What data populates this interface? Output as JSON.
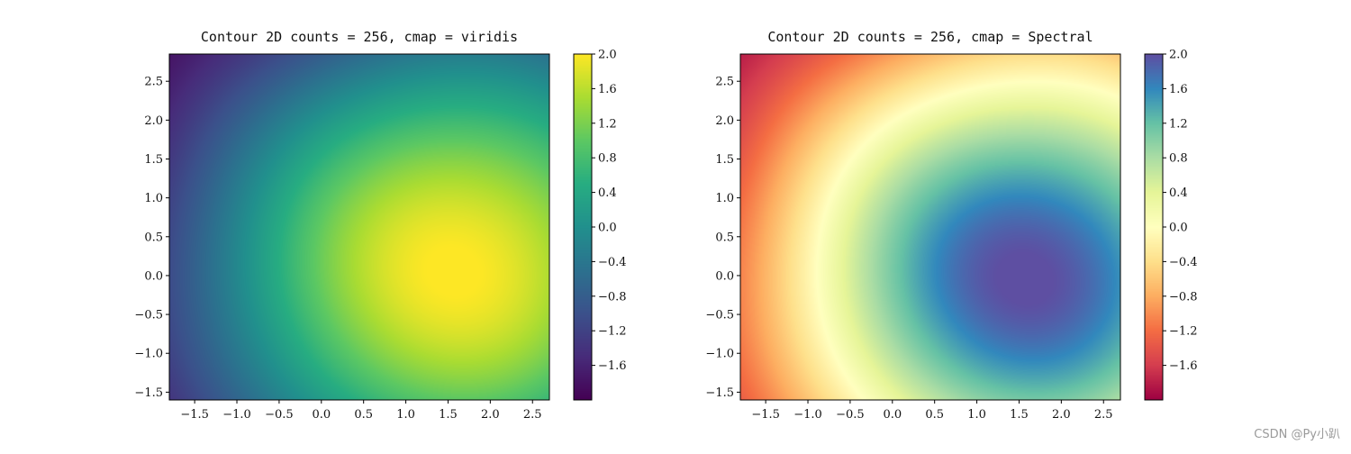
{
  "chart_data": [
    {
      "type": "heatmap",
      "title": "Contour 2D counts = 256, cmap = viridis",
      "cmap": "viridis",
      "levels": 256,
      "xlim": [
        -1.8,
        2.7
      ],
      "ylim": [
        -1.6,
        2.85
      ],
      "xticks": [
        -1.5,
        -1.0,
        -0.5,
        0.0,
        0.5,
        1.0,
        1.5,
        2.0,
        2.5
      ],
      "xtick_labels": [
        "−1.5",
        "−1.0",
        "−0.5",
        "0.0",
        "0.5",
        "1.0",
        "1.5",
        "2.0",
        "2.5"
      ],
      "yticks": [
        -1.5,
        -1.0,
        -0.5,
        0.0,
        0.5,
        1.0,
        1.5,
        2.0,
        2.5
      ],
      "ytick_labels": [
        "−1.5",
        "−1.0",
        "−0.5",
        "0.0",
        "0.5",
        "1.0",
        "1.5",
        "2.0",
        "2.5"
      ],
      "colorbar": {
        "range": [
          -2.0,
          2.0
        ],
        "ticks": [
          2.0,
          1.6,
          1.2,
          0.8,
          0.4,
          0.0,
          -0.4,
          -0.8,
          -1.2,
          -1.6
        ],
        "tick_labels": [
          "2.0",
          "1.6",
          "1.2",
          "0.8",
          "0.4",
          "0.0",
          "−0.4",
          "−0.8",
          "−1.2",
          "−1.6"
        ]
      },
      "field_peak": {
        "x": 1.6,
        "y": 0.1,
        "value": 2.0
      },
      "field_min": {
        "x": -1.8,
        "y": 2.85,
        "value": -2.0
      }
    },
    {
      "type": "heatmap",
      "title": "Contour 2D counts = 256, cmap = Spectral",
      "cmap": "Spectral",
      "levels": 256,
      "xlim": [
        -1.8,
        2.7
      ],
      "ylim": [
        -1.6,
        2.85
      ],
      "xticks": [
        -1.5,
        -1.0,
        -0.5,
        0.0,
        0.5,
        1.0,
        1.5,
        2.0,
        2.5
      ],
      "xtick_labels": [
        "−1.5",
        "−1.0",
        "−0.5",
        "0.0",
        "0.5",
        "1.0",
        "1.5",
        "2.0",
        "2.5"
      ],
      "yticks": [
        -1.5,
        -1.0,
        -0.5,
        0.0,
        0.5,
        1.0,
        1.5,
        2.0,
        2.5
      ],
      "ytick_labels": [
        "−1.5",
        "−1.0",
        "−0.5",
        "0.0",
        "0.5",
        "1.0",
        "1.5",
        "2.0",
        "2.5"
      ],
      "colorbar": {
        "range": [
          -2.0,
          2.0
        ],
        "ticks": [
          2.0,
          1.6,
          1.2,
          0.8,
          0.4,
          0.0,
          -0.4,
          -0.8,
          -1.2,
          -1.6
        ],
        "tick_labels": [
          "2.0",
          "1.6",
          "1.2",
          "0.8",
          "0.4",
          "0.0",
          "−0.4",
          "−0.8",
          "−1.2",
          "−1.6"
        ]
      },
      "field_peak": {
        "x": 1.6,
        "y": 0.0,
        "value": 2.0
      },
      "field_min": {
        "x": -1.8,
        "y": 2.85,
        "value": -2.0
      }
    }
  ],
  "watermark": "CSDN @Py小趴"
}
